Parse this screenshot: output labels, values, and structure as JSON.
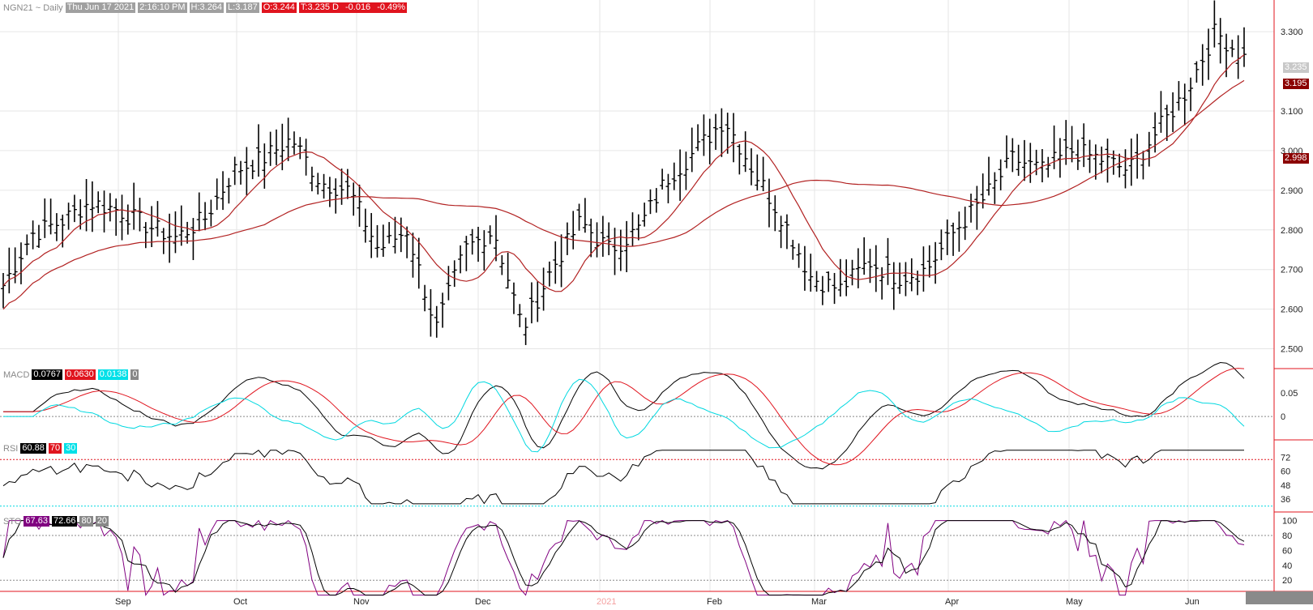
{
  "header": {
    "symbol": "NGN21 ~ Daily",
    "date": "Thu Jun 17 2021",
    "time": "2:16:10 PM",
    "high": "H:3.264",
    "low": "L:3.187",
    "open": "O:3.244",
    "last": "T:3.235 D",
    "change": "-0.016",
    "pct": "-0.49%"
  },
  "price_axis": {
    "ticks": [
      "3.300",
      "3.100",
      "3.000",
      "2.900",
      "2.800",
      "2.700",
      "2.600",
      "2.500"
    ],
    "last_badge": "3.235",
    "ma_short_badge": "3.195",
    "ma_long_badge": "2.998"
  },
  "macd": {
    "label": "MACD",
    "v1": "0.0767",
    "v2": "0.0630",
    "v3": "0.0138",
    "v4": "0",
    "ticks": [
      "0.05",
      "0"
    ]
  },
  "rsi": {
    "label": "RSI",
    "v1": "60.88",
    "v2": "70",
    "v3": "30",
    "ticks": [
      "72",
      "60",
      "48",
      "36"
    ]
  },
  "sto": {
    "label": "STO",
    "v1": "67.63",
    "v2": "72.66",
    "v3": "80",
    "v4": "20",
    "ticks": [
      "100",
      "80",
      "60",
      "40",
      "20"
    ]
  },
  "x_axis": {
    "labels": [
      "Sep",
      "Oct",
      "Nov",
      "Dec",
      "2021",
      "Feb",
      "Mar",
      "Apr",
      "May",
      "Jun"
    ]
  },
  "colors": {
    "bar": "#000000",
    "ma": "#b22222",
    "red": "#e0141e",
    "cyan": "#00e0e8",
    "purple": "#800080",
    "grid": "#e4e4e4"
  },
  "chart_data": {
    "type": "ohlc",
    "title": "NGN21 ~ Daily",
    "series": [
      {
        "name": "price",
        "points": [
          [
            "Aug-20",
            2.66
          ],
          [
            "Aug-27",
            2.79
          ],
          [
            "Sep-03",
            2.82
          ],
          [
            "Sep-10",
            2.87
          ],
          [
            "Sep-17",
            2.85
          ],
          [
            "Sep-24",
            2.81
          ],
          [
            "Oct-01",
            2.78
          ],
          [
            "Oct-08",
            2.83
          ],
          [
            "Oct-15",
            2.95
          ],
          [
            "Oct-22",
            2.98
          ],
          [
            "Oct-29",
            3.03
          ],
          [
            "Nov-05",
            2.92
          ],
          [
            "Nov-12",
            2.9
          ],
          [
            "Nov-19",
            2.75
          ],
          [
            "Nov-26",
            2.8
          ],
          [
            "Dec-03",
            2.55
          ],
          [
            "Dec-10",
            2.75
          ],
          [
            "Dec-17",
            2.8
          ],
          [
            "Dec-24",
            2.55
          ],
          [
            "Dec-31",
            2.7
          ],
          [
            "Jan-07",
            2.82
          ],
          [
            "Jan-14",
            2.75
          ],
          [
            "Jan-21",
            2.8
          ],
          [
            "Jan-28",
            2.93
          ],
          [
            "Feb-04",
            3.0
          ],
          [
            "Feb-11",
            3.08
          ],
          [
            "Feb-18",
            2.95
          ],
          [
            "Feb-25",
            2.83
          ],
          [
            "Mar-04",
            2.68
          ],
          [
            "Mar-11",
            2.65
          ],
          [
            "Mar-18",
            2.72
          ],
          [
            "Mar-25",
            2.68
          ],
          [
            "Apr-01",
            2.7
          ],
          [
            "Apr-08",
            2.8
          ],
          [
            "Apr-15",
            2.88
          ],
          [
            "Apr-22",
            2.98
          ],
          [
            "Apr-29",
            2.95
          ],
          [
            "May-06",
            3.0
          ],
          [
            "May-13",
            2.98
          ],
          [
            "May-20",
            2.95
          ],
          [
            "May-27",
            3.05
          ],
          [
            "Jun-03",
            3.15
          ],
          [
            "Jun-10",
            3.3
          ],
          [
            "Jun-17",
            3.235
          ]
        ]
      }
    ],
    "ylim": [
      2.45,
      3.38
    ]
  }
}
